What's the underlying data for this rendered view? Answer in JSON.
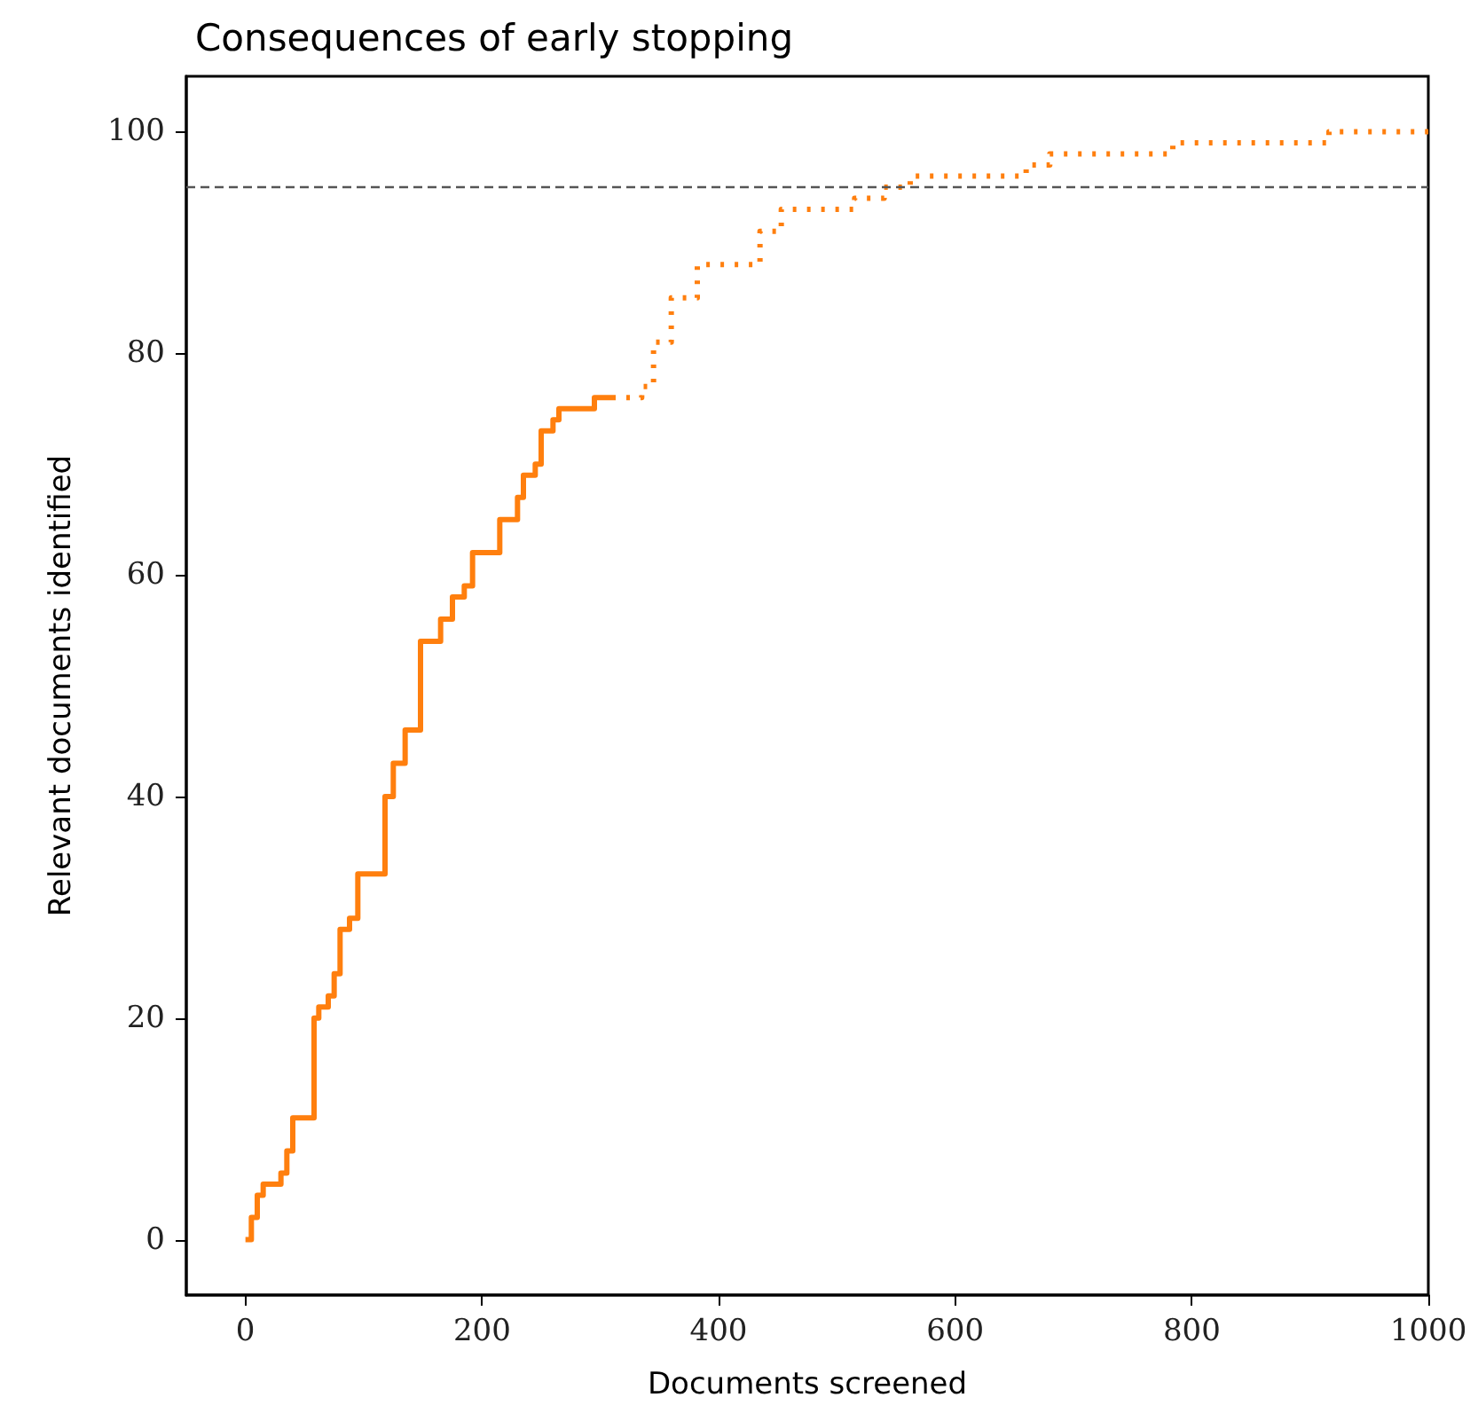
{
  "chart_data": {
    "type": "step",
    "title": "Consequences of early stopping",
    "xlabel": "Documents screened",
    "ylabel": "Relevant documents identified",
    "xlim": [
      -50,
      1000
    ],
    "xticks": [
      0,
      200,
      400,
      600,
      800,
      1000
    ],
    "ylim": [
      -5,
      105
    ],
    "yticks": [
      0,
      20,
      40,
      60,
      80,
      100
    ],
    "grid": false,
    "marker": "none",
    "series": [
      {
        "color": "#ff7f0e",
        "line_style": "solid",
        "x": [
          0,
          5,
          10,
          15,
          25,
          30,
          35,
          40,
          52,
          58,
          62,
          70,
          75,
          80,
          88,
          95,
          110,
          118,
          125,
          135,
          148,
          160,
          165,
          175,
          185,
          192,
          205,
          215,
          230,
          235,
          245,
          250,
          260,
          265,
          290,
          295,
          310
        ],
        "values": [
          0,
          2,
          4,
          5,
          5,
          6,
          8,
          11,
          11,
          20,
          21,
          22,
          24,
          28,
          29,
          33,
          33,
          40,
          43,
          46,
          54,
          54,
          56,
          58,
          59,
          62,
          62,
          65,
          67,
          69,
          70,
          73,
          74,
          75,
          75,
          76,
          76
        ]
      },
      {
        "color": "#ff7f0e",
        "line_style": "dotted",
        "x": [
          310,
          335,
          345,
          360,
          382,
          423,
          435,
          453,
          500,
          515,
          540,
          562,
          650,
          660,
          680,
          784,
          916,
          1000
        ],
        "values": [
          76,
          77,
          81,
          85,
          88,
          88,
          91,
          93,
          93,
          94,
          95,
          96,
          96,
          97,
          98,
          99,
          100,
          100
        ]
      }
    ],
    "ref_lines": [
      {
        "axis": "y",
        "value": 95,
        "color": "#555555",
        "line_style": "dashed"
      }
    ]
  }
}
